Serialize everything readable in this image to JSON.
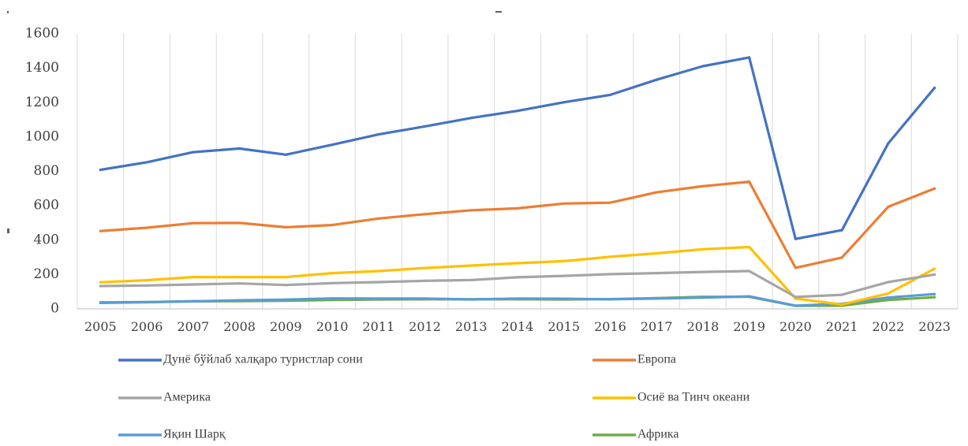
{
  "chart_data": {
    "type": "line",
    "x": [
      "2005",
      "2006",
      "2007",
      "2008",
      "2009",
      "2010",
      "2011",
      "2012",
      "2013",
      "2014",
      "2015",
      "2016",
      "2017",
      "2018",
      "2019",
      "2020",
      "2021",
      "2022",
      "2023"
    ],
    "ylim": [
      0,
      1600
    ],
    "yticks": [
      "0",
      "200",
      "400",
      "600",
      "800",
      "1000",
      "1200",
      "1400",
      "1600"
    ],
    "ytick_values": [
      0,
      200,
      400,
      600,
      800,
      1000,
      1200,
      1400,
      1600
    ],
    "grid": "vertical",
    "legend_position": "bottom",
    "series": [
      {
        "name": "Дунё бўйлаб халқаро туристлар сони",
        "color": "#4472C4",
        "values": [
          809,
          853,
          912,
          933,
          897,
          955,
          1015,
          1062,
          1111,
          1152,
          1202,
          1245,
          1333,
          1412,
          1463,
          407,
          458,
          963,
          1286
        ]
      },
      {
        "name": "Европа",
        "color": "#ED7D31",
        "values": [
          453,
          472,
          499,
          500,
          475,
          488,
          526,
          551,
          574,
          585,
          613,
          618,
          678,
          714,
          740,
          239,
          299,
          594,
          700
        ]
      },
      {
        "name": "Америка",
        "color": "#A5A5A5",
        "values": [
          133,
          136,
          142,
          148,
          139,
          150,
          156,
          163,
          168,
          184,
          192,
          202,
          208,
          215,
          220,
          69,
          82,
          156,
          200
        ]
      },
      {
        "name": "Осиё ва Тинч океани",
        "color": "#FFC000",
        "values": [
          155,
          167,
          185,
          185,
          185,
          208,
          220,
          238,
          252,
          266,
          278,
          303,
          323,
          347,
          360,
          60,
          25,
          90,
          234
        ]
      },
      {
        "name": "Яқин Шарқ",
        "color": "#5B9BD5",
        "values": [
          35,
          39,
          44,
          50,
          54,
          61,
          60,
          60,
          55,
          60,
          59,
          56,
          60,
          66,
          73,
          19,
          30,
          66,
          86
        ]
      },
      {
        "name": "Африка",
        "color": "#70AD47",
        "values": [
          38,
          40,
          44,
          45,
          47,
          52,
          55,
          56,
          56,
          56,
          55,
          57,
          63,
          70,
          70,
          18,
          19,
          52,
          68
        ]
      }
    ]
  }
}
